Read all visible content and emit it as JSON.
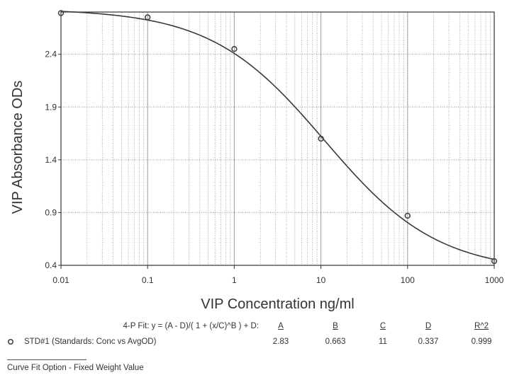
{
  "chart_data": {
    "type": "scatter",
    "xscale": "log",
    "xlim": [
      0.01,
      1000
    ],
    "ylim": [
      0.4,
      2.8
    ],
    "xlabel": "VIP Concentration ng/ml",
    "ylabel": "VIP Absorbance ODs",
    "xticks": [
      "0.01",
      "0.1",
      "1",
      "10",
      "100",
      "1000"
    ],
    "yticks": [
      "0.4",
      "0.9",
      "1.4",
      "1.9",
      "2.4"
    ],
    "grid": true,
    "series": [
      {
        "name": "STD#1 (Standards: Conc vs AvgOD)",
        "x": [
          0.01,
          0.1,
          1,
          10,
          100,
          1000
        ],
        "y": [
          2.79,
          2.75,
          2.45,
          1.6,
          0.87,
          0.44
        ]
      }
    ],
    "fit": {
      "model": "4-PL",
      "A": 2.83,
      "B": 0.663,
      "C": 11,
      "D": 0.337
    }
  },
  "fit_table": {
    "equation": "4-P Fit:  y = (A - D)/( 1 + (x/C)^B ) + D:",
    "headers": [
      "A",
      "B",
      "C",
      "D",
      "R^2"
    ],
    "values": [
      "2.83",
      "0.663",
      "11",
      "0.337",
      "0.999"
    ],
    "series_label": "STD#1 (Standards: Conc vs AvgOD)"
  },
  "footer": "Curve Fit Option - Fixed Weight Value",
  "colors": {
    "curve": "#3a3a3a",
    "grid": "#9a9a9a",
    "marker": "#444444"
  }
}
